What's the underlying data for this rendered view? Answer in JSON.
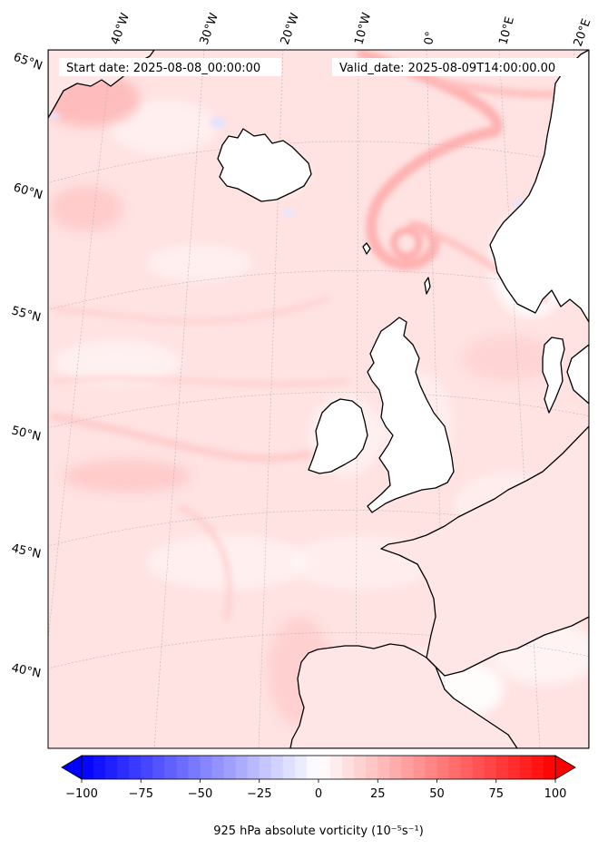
{
  "header": {
    "start_date": "Start date: 2025-08-08_00:00:00",
    "valid_date": "Valid_date: 2025-08-09T14:00:00.00"
  },
  "map": {
    "projection": "lambert-conformal",
    "lon_labels": [
      "40°W",
      "30°W",
      "20°W",
      "10°W",
      "0°",
      "10°E",
      "20°E"
    ],
    "lat_labels": [
      "65°N",
      "60°N",
      "55°N",
      "50°N",
      "45°N",
      "40°N"
    ],
    "gridlines": true,
    "colors": {
      "coastline": "#000000",
      "background_field": "#ffe3e3",
      "neutral": "#ffffff"
    }
  },
  "colorbar": {
    "label": "925 hPa absolute vorticity (10⁻⁵s⁻¹)",
    "tick_labels": [
      "−100",
      "−75",
      "−50",
      "−25",
      "0",
      "25",
      "50",
      "75",
      "100"
    ],
    "min": -100,
    "max": 100,
    "levels": 40,
    "colormap": "bwr",
    "extend": "both"
  }
}
